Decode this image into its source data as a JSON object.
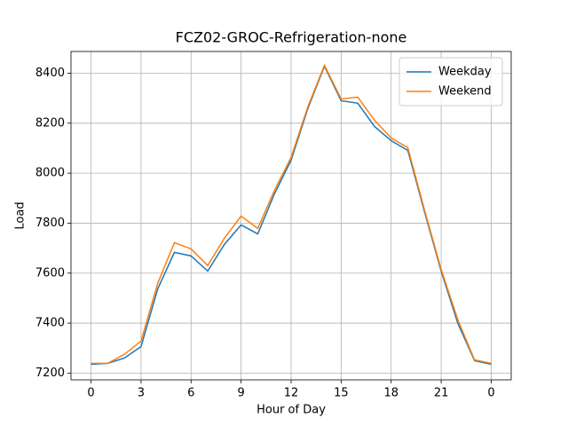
{
  "chart_data": {
    "type": "line",
    "title": "FCZ02-GROC-Refrigeration-none",
    "x_label": "Hour of Day",
    "y_label": "Load",
    "x": [
      0,
      1,
      2,
      3,
      4,
      5,
      6,
      7,
      8,
      9,
      10,
      11,
      12,
      13,
      14,
      15,
      16,
      17,
      18,
      19,
      20,
      21,
      22,
      23,
      24
    ],
    "series": [
      {
        "name": "Weekday",
        "color": "#1f77b4",
        "values": [
          7235,
          7239,
          7260,
          7306,
          7537,
          7683,
          7669,
          7608,
          7715,
          7793,
          7757,
          7917,
          8052,
          8258,
          8428,
          8290,
          8280,
          8187,
          8130,
          8091,
          7846,
          7608,
          7399,
          7250,
          7235
        ]
      },
      {
        "name": "Weekend",
        "color": "#ff7f0e",
        "values": [
          7239,
          7239,
          7275,
          7328,
          7559,
          7722,
          7697,
          7630,
          7740,
          7828,
          7779,
          7931,
          8063,
          8265,
          8432,
          8297,
          8304,
          8212,
          8141,
          8102,
          7853,
          7615,
          7413,
          7253,
          7239
        ]
      }
    ],
    "xlim": [
      -1.2,
      25.2
    ],
    "ylim": [
      7173,
      8487
    ],
    "xticks": [
      0,
      3,
      6,
      9,
      12,
      15,
      18,
      21,
      {
        "value": 24,
        "label": "0"
      }
    ],
    "yticks": [
      7200,
      7400,
      7600,
      7800,
      8000,
      8200,
      8400
    ],
    "grid": true,
    "legend": "upper right"
  }
}
